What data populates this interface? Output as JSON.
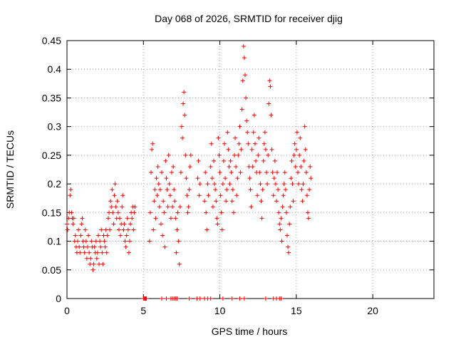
{
  "chart_data": {
    "type": "scatter",
    "title": "Day 068 of 2026, SRMTID for receiver djig",
    "xlabel": "GPS time / hours",
    "ylabel": "SRMTID / TECUs",
    "xlim": [
      0,
      24
    ],
    "ylim": [
      0,
      0.45
    ],
    "x_ticks": [
      0,
      5,
      10,
      15,
      20
    ],
    "x_tick_labels": [
      "0",
      "5",
      "10",
      "15",
      "20"
    ],
    "y_ticks": [
      0,
      0.05,
      0.1,
      0.15,
      0.2,
      0.25,
      0.3,
      0.35,
      0.4,
      0.45
    ],
    "y_tick_labels": [
      "0",
      "0.05",
      "0.1",
      "0.15",
      "0.2",
      "0.25",
      "0.3",
      "0.35",
      "0.4",
      "0.45"
    ],
    "grid": true,
    "marker": "+",
    "colors": {
      "series": "#ff0000",
      "axis": "#000000",
      "grid": "#a0a0a0"
    },
    "series": [
      {
        "name": "SRMTID",
        "points": [
          [
            0.0,
            0.13
          ],
          [
            0.05,
            0.12
          ],
          [
            0.1,
            0.14
          ],
          [
            0.15,
            0.15
          ],
          [
            0.2,
            0.18
          ],
          [
            0.25,
            0.19
          ],
          [
            0.3,
            0.15
          ],
          [
            0.35,
            0.14
          ],
          [
            0.4,
            0.13
          ],
          [
            0.45,
            0.14
          ],
          [
            0.5,
            0.1
          ],
          [
            0.55,
            0.11
          ],
          [
            0.6,
            0.09
          ],
          [
            0.65,
            0.08
          ],
          [
            0.7,
            0.1
          ],
          [
            0.75,
            0.12
          ],
          [
            0.8,
            0.09
          ],
          [
            0.85,
            0.08
          ],
          [
            0.9,
            0.11
          ],
          [
            0.95,
            0.13
          ],
          [
            1.0,
            0.14
          ],
          [
            1.05,
            0.1
          ],
          [
            1.1,
            0.09
          ],
          [
            1.15,
            0.08
          ],
          [
            1.2,
            0.12
          ],
          [
            1.25,
            0.1
          ],
          [
            1.3,
            0.07
          ],
          [
            1.35,
            0.09
          ],
          [
            1.4,
            0.11
          ],
          [
            1.45,
            0.08
          ],
          [
            1.5,
            0.06
          ],
          [
            1.55,
            0.07
          ],
          [
            1.6,
            0.1
          ],
          [
            1.65,
            0.09
          ],
          [
            1.7,
            0.05
          ],
          [
            1.75,
            0.06
          ],
          [
            1.8,
            0.09
          ],
          [
            1.85,
            0.08
          ],
          [
            1.9,
            0.1
          ],
          [
            1.95,
            0.07
          ],
          [
            2.0,
            0.08
          ],
          [
            2.05,
            0.11
          ],
          [
            2.1,
            0.06
          ],
          [
            2.15,
            0.1
          ],
          [
            2.2,
            0.09
          ],
          [
            2.25,
            0.12
          ],
          [
            2.3,
            0.08
          ],
          [
            2.35,
            0.06
          ],
          [
            2.4,
            0.11
          ],
          [
            2.45,
            0.1
          ],
          [
            2.5,
            0.09
          ],
          [
            2.55,
            0.12
          ],
          [
            2.6,
            0.08
          ],
          [
            2.65,
            0.11
          ],
          [
            2.7,
            0.14
          ],
          [
            2.75,
            0.15
          ],
          [
            2.8,
            0.12
          ],
          [
            2.85,
            0.17
          ],
          [
            2.9,
            0.16
          ],
          [
            2.95,
            0.19
          ],
          [
            3.0,
            0.15
          ],
          [
            3.05,
            0.13
          ],
          [
            3.1,
            0.18
          ],
          [
            3.15,
            0.2
          ],
          [
            3.2,
            0.16
          ],
          [
            3.25,
            0.14
          ],
          [
            3.3,
            0.17
          ],
          [
            3.35,
            0.15
          ],
          [
            3.4,
            0.12
          ],
          [
            3.45,
            0.14
          ],
          [
            3.5,
            0.11
          ],
          [
            3.55,
            0.13
          ],
          [
            3.6,
            0.16
          ],
          [
            3.65,
            0.18
          ],
          [
            3.7,
            0.12
          ],
          [
            3.75,
            0.13
          ],
          [
            3.8,
            0.1
          ],
          [
            3.85,
            0.09
          ],
          [
            3.9,
            0.11
          ],
          [
            3.95,
            0.14
          ],
          [
            4.0,
            0.12
          ],
          [
            4.05,
            0.08
          ],
          [
            4.1,
            0.1
          ],
          [
            4.15,
            0.13
          ],
          [
            4.2,
            0.15
          ],
          [
            4.25,
            0.14
          ],
          [
            4.3,
            0.16
          ],
          [
            4.35,
            0.12
          ],
          [
            4.4,
            0.15
          ],
          [
            4.45,
            0.16
          ],
          [
            5.0,
            0.0
          ],
          [
            5.05,
            0.0
          ],
          [
            5.1,
            0.0
          ],
          [
            5.15,
            0.0
          ],
          [
            5.2,
            0.0
          ],
          [
            5.4,
            0.1
          ],
          [
            5.45,
            0.15
          ],
          [
            5.5,
            0.22
          ],
          [
            5.55,
            0.26
          ],
          [
            5.6,
            0.27
          ],
          [
            5.65,
            0.12
          ],
          [
            5.7,
            0.17
          ],
          [
            5.75,
            0.19
          ],
          [
            5.8,
            0.14
          ],
          [
            5.85,
            0.21
          ],
          [
            5.9,
            0.18
          ],
          [
            5.95,
            0.23
          ],
          [
            6.0,
            0.2
          ],
          [
            6.05,
            0.16
          ],
          [
            6.1,
            0.19
          ],
          [
            6.15,
            0.13
          ],
          [
            6.2,
            0.22
          ],
          [
            6.25,
            0.11
          ],
          [
            6.3,
            0.17
          ],
          [
            6.35,
            0.15
          ],
          [
            6.4,
            0.09
          ],
          [
            6.45,
            0.24
          ],
          [
            6.5,
            0.21
          ],
          [
            6.55,
            0.19
          ],
          [
            6.6,
            0.16
          ],
          [
            6.65,
            0.25
          ],
          [
            6.7,
            0.2
          ],
          [
            6.75,
            0.18
          ],
          [
            6.8,
            0.14
          ],
          [
            6.85,
            0.22
          ],
          [
            6.9,
            0.16
          ],
          [
            6.95,
            0.23
          ],
          [
            7.0,
            0.19
          ],
          [
            7.05,
            0.17
          ],
          [
            7.1,
            0.14
          ],
          [
            7.15,
            0.08
          ],
          [
            7.2,
            0.12
          ],
          [
            7.25,
            0.15
          ],
          [
            7.3,
            0.1
          ],
          [
            7.35,
            0.06
          ],
          [
            7.4,
            0.16
          ],
          [
            7.45,
            0.22
          ],
          [
            7.5,
            0.3
          ],
          [
            7.55,
            0.28
          ],
          [
            7.6,
            0.34
          ],
          [
            7.65,
            0.36
          ],
          [
            7.7,
            0.32
          ],
          [
            7.75,
            0.25
          ],
          [
            7.8,
            0.21
          ],
          [
            7.85,
            0.18
          ],
          [
            7.9,
            0.15
          ],
          [
            7.95,
            0.16
          ],
          [
            8.0,
            0.19
          ],
          [
            8.05,
            0.23
          ],
          [
            8.1,
            0.25
          ],
          [
            6.2,
            0.0
          ],
          [
            6.5,
            0.0
          ],
          [
            6.8,
            0.0
          ],
          [
            6.9,
            0.0
          ],
          [
            7.0,
            0.0
          ],
          [
            7.1,
            0.0
          ],
          [
            7.2,
            0.0
          ],
          [
            8.0,
            0.0
          ],
          [
            8.5,
            0.0
          ],
          [
            8.7,
            0.0
          ],
          [
            9.0,
            0.0
          ],
          [
            9.2,
            0.0
          ],
          [
            9.4,
            0.0
          ],
          [
            10.2,
            0.0
          ],
          [
            10.8,
            0.0
          ],
          [
            11.3,
            0.0
          ],
          [
            11.6,
            0.0
          ],
          [
            13.0,
            0.0
          ],
          [
            13.5,
            0.0
          ],
          [
            13.7,
            0.0
          ],
          [
            13.9,
            0.0
          ],
          [
            14.0,
            0.0
          ],
          [
            8.55,
            0.21
          ],
          [
            8.6,
            0.24
          ],
          [
            8.65,
            0.18
          ],
          [
            8.7,
            0.2
          ],
          [
            9.0,
            0.17
          ],
          [
            9.05,
            0.22
          ],
          [
            9.1,
            0.15
          ],
          [
            9.15,
            0.12
          ],
          [
            9.2,
            0.2
          ],
          [
            9.25,
            0.18
          ],
          [
            9.4,
            0.23
          ],
          [
            9.45,
            0.27
          ],
          [
            9.5,
            0.21
          ],
          [
            9.55,
            0.16
          ],
          [
            9.6,
            0.24
          ],
          [
            9.65,
            0.2
          ],
          [
            9.7,
            0.19
          ],
          [
            9.75,
            0.17
          ],
          [
            9.8,
            0.14
          ],
          [
            9.85,
            0.13
          ],
          [
            9.9,
            0.28
          ],
          [
            9.95,
            0.25
          ],
          [
            10.0,
            0.22
          ],
          [
            10.05,
            0.18
          ],
          [
            10.1,
            0.15
          ],
          [
            10.15,
            0.12
          ],
          [
            10.2,
            0.2
          ],
          [
            10.25,
            0.24
          ],
          [
            10.3,
            0.27
          ],
          [
            10.35,
            0.21
          ],
          [
            10.4,
            0.17
          ],
          [
            10.45,
            0.19
          ],
          [
            10.5,
            0.29
          ],
          [
            10.55,
            0.26
          ],
          [
            10.6,
            0.23
          ],
          [
            10.65,
            0.2
          ],
          [
            10.7,
            0.24
          ],
          [
            10.75,
            0.22
          ],
          [
            10.8,
            0.17
          ],
          [
            10.85,
            0.19
          ],
          [
            10.9,
            0.15
          ],
          [
            10.95,
            0.25
          ],
          [
            11.0,
            0.28
          ],
          [
            11.05,
            0.23
          ],
          [
            11.1,
            0.18
          ],
          [
            11.15,
            0.21
          ],
          [
            11.2,
            0.25
          ],
          [
            11.25,
            0.27
          ],
          [
            11.3,
            0.3
          ],
          [
            11.35,
            0.22
          ],
          [
            11.4,
            0.26
          ],
          [
            11.45,
            0.33
          ],
          [
            11.5,
            0.38
          ],
          [
            11.55,
            0.44
          ],
          [
            11.6,
            0.42
          ],
          [
            11.65,
            0.39
          ],
          [
            11.7,
            0.35
          ],
          [
            11.75,
            0.31
          ],
          [
            11.8,
            0.29
          ],
          [
            11.85,
            0.27
          ],
          [
            11.9,
            0.23
          ],
          [
            11.95,
            0.21
          ],
          [
            12.0,
            0.19
          ],
          [
            12.05,
            0.16
          ],
          [
            12.1,
            0.26
          ],
          [
            12.15,
            0.23
          ],
          [
            12.2,
            0.29
          ],
          [
            12.25,
            0.32
          ],
          [
            12.3,
            0.27
          ],
          [
            12.35,
            0.24
          ],
          [
            12.4,
            0.22
          ],
          [
            12.45,
            0.18
          ],
          [
            12.5,
            0.25
          ],
          [
            12.55,
            0.28
          ],
          [
            12.6,
            0.22
          ],
          [
            12.65,
            0.2
          ],
          [
            12.7,
            0.17
          ],
          [
            12.75,
            0.14
          ],
          [
            12.8,
            0.19
          ],
          [
            12.85,
            0.24
          ],
          [
            12.9,
            0.27
          ],
          [
            12.95,
            0.29
          ],
          [
            13.0,
            0.26
          ],
          [
            13.05,
            0.22
          ],
          [
            13.1,
            0.2
          ],
          [
            13.15,
            0.25
          ],
          [
            13.2,
            0.34
          ],
          [
            13.25,
            0.38
          ],
          [
            13.3,
            0.37
          ],
          [
            13.35,
            0.32
          ],
          [
            13.4,
            0.26
          ],
          [
            13.45,
            0.22
          ],
          [
            13.5,
            0.18
          ],
          [
            13.55,
            0.21
          ],
          [
            13.6,
            0.24
          ],
          [
            13.65,
            0.2
          ],
          [
            13.7,
            0.17
          ],
          [
            13.75,
            0.22
          ],
          [
            13.8,
            0.19
          ],
          [
            13.85,
            0.15
          ],
          [
            13.9,
            0.13
          ],
          [
            13.95,
            0.12
          ],
          [
            14.0,
            0.14
          ],
          [
            14.05,
            0.1
          ],
          [
            14.1,
            0.16
          ],
          [
            14.15,
            0.18
          ],
          [
            14.2,
            0.2
          ],
          [
            14.25,
            0.22
          ],
          [
            14.3,
            0.19
          ],
          [
            14.35,
            0.15
          ],
          [
            14.4,
            0.11
          ],
          [
            14.45,
            0.09
          ],
          [
            14.5,
            0.08
          ],
          [
            14.55,
            0.13
          ],
          [
            14.6,
            0.16
          ],
          [
            14.65,
            0.21
          ],
          [
            14.7,
            0.24
          ],
          [
            14.75,
            0.2
          ],
          [
            14.8,
            0.17
          ],
          [
            14.85,
            0.25
          ],
          [
            14.9,
            0.27
          ],
          [
            14.95,
            0.23
          ],
          [
            15.0,
            0.26
          ],
          [
            15.05,
            0.29
          ],
          [
            15.1,
            0.22
          ],
          [
            15.15,
            0.2
          ],
          [
            15.2,
            0.25
          ],
          [
            15.25,
            0.28
          ],
          [
            15.3,
            0.23
          ],
          [
            15.35,
            0.19
          ],
          [
            15.4,
            0.17
          ],
          [
            15.45,
            0.2
          ],
          [
            15.5,
            0.24
          ],
          [
            15.55,
            0.3
          ],
          [
            15.6,
            0.26
          ],
          [
            15.65,
            0.22
          ],
          [
            15.7,
            0.18
          ],
          [
            15.75,
            0.15
          ],
          [
            15.8,
            0.14
          ],
          [
            15.85,
            0.19
          ],
          [
            15.9,
            0.23
          ],
          [
            15.95,
            0.21
          ]
        ]
      }
    ]
  }
}
